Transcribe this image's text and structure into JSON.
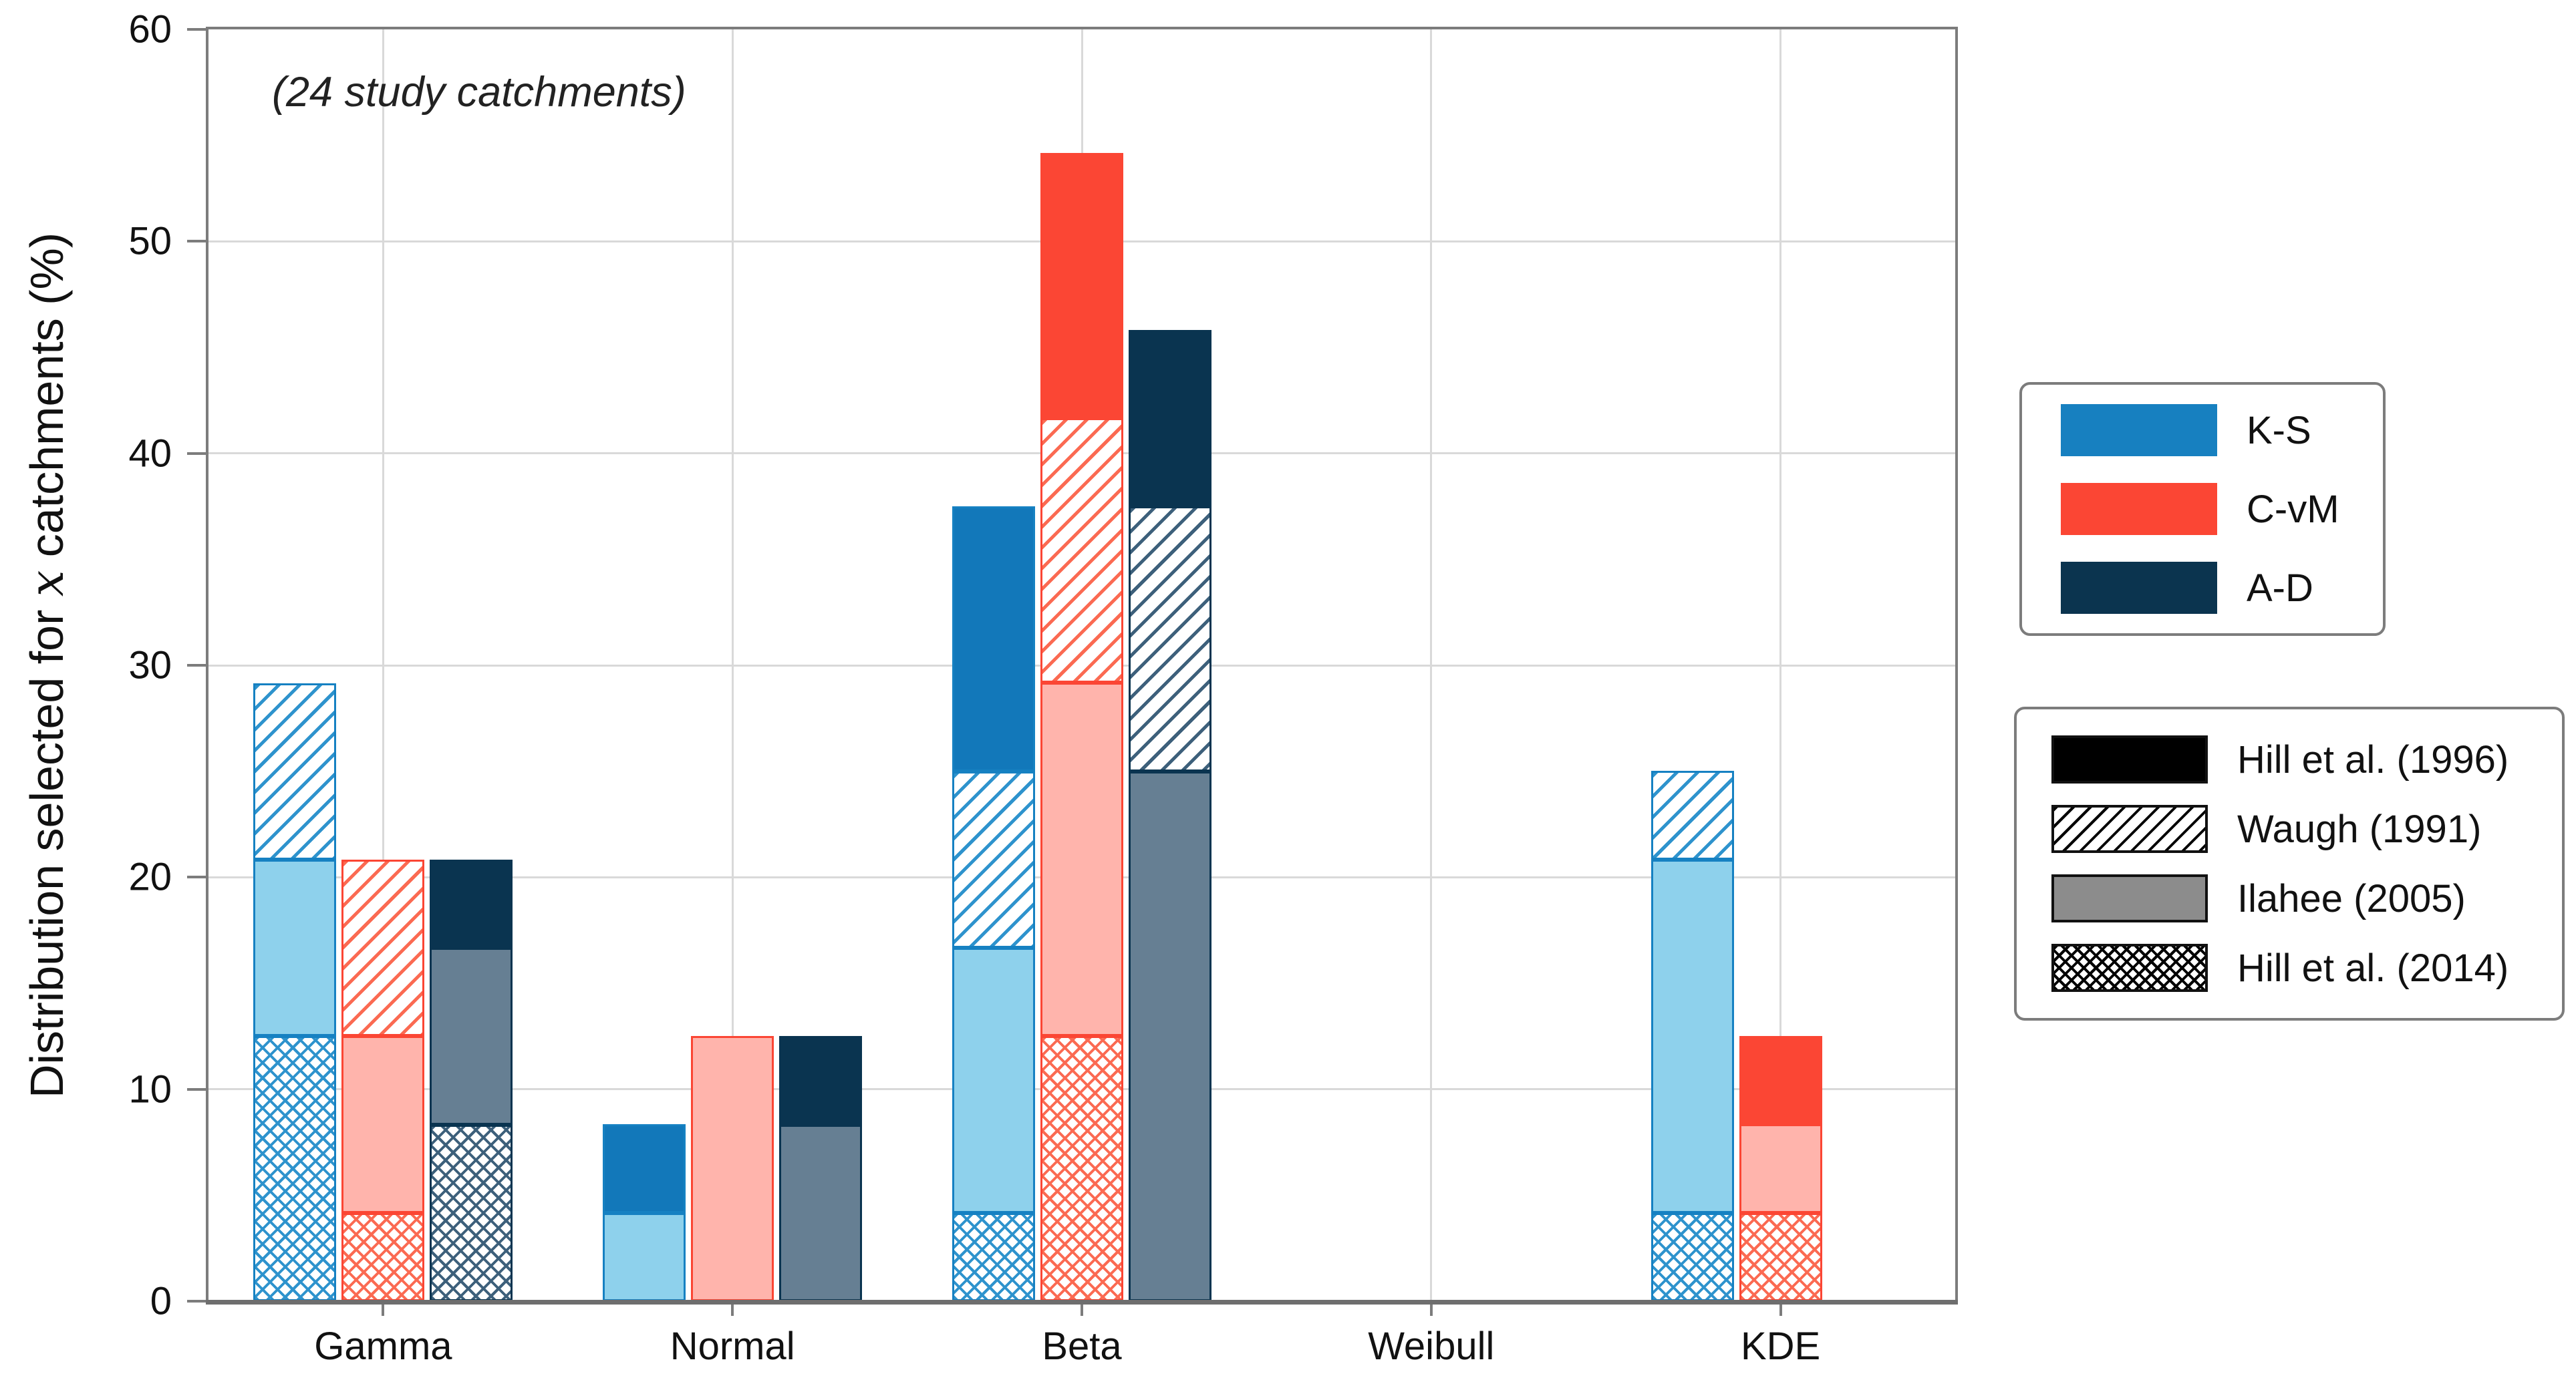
{
  "annotation": "(24 study catchments)",
  "ylabel": {
    "pre": "Distribution selected for ",
    "var": "x",
    "post": " catchments (%)"
  },
  "legend_tests": {
    "items": [
      {
        "label": "K-S",
        "color": "#1780c0"
      },
      {
        "label": "C-vM",
        "color": "#fb4634"
      },
      {
        "label": "A-D",
        "color": "#0b344f"
      }
    ]
  },
  "legend_studies": {
    "items": [
      {
        "label": "Hill et al. (1996)",
        "pattern": "solid",
        "color": "#000000"
      },
      {
        "label": "Waugh (1991)",
        "pattern": "diag",
        "color": "#000000"
      },
      {
        "label": "Ilahee (2005)",
        "pattern": "solid",
        "color": "#8c8c8c"
      },
      {
        "label": "Hill et al. (2014)",
        "pattern": "cross",
        "color": "#000000"
      }
    ]
  },
  "chart_data": {
    "type": "bar",
    "subtype": "grouped-stacked",
    "title": "",
    "annotation": "(24 study catchments)",
    "xlabel": "",
    "ylabel": "Distribution selected for x catchments (%)",
    "ylim": [
      0,
      60
    ],
    "yticks": [
      0,
      10,
      20,
      30,
      40,
      50,
      60
    ],
    "grid": true,
    "categories": [
      "Gamma",
      "Normal",
      "Beta",
      "Weibull",
      "KDE"
    ],
    "unit_pct_per_catchment": 4.17,
    "stack_order": [
      "Hill et al. (2014)",
      "Ilahee (2005)",
      "Waugh (1991)",
      "Hill et al. (1996)"
    ],
    "patterns": {
      "Hill et al. (2014)": "cross",
      "Ilahee (2005)": "light",
      "Waugh (1991)": "diag",
      "Hill et al. (1996)": "strong"
    },
    "series": [
      {
        "name": "K-S",
        "colors": {
          "strong": "#1278ba",
          "light": "#8ed1ec",
          "hatch": "#2e93cd",
          "line": "#1681c2"
        },
        "stacks": {
          "Hill et al. (2014)": [
            12.5,
            0,
            4.17,
            0,
            4.17
          ],
          "Ilahee (2005)": [
            8.33,
            4.17,
            12.5,
            0,
            16.67
          ],
          "Waugh (1991)": [
            8.33,
            0,
            8.33,
            0,
            4.17
          ],
          "Hill et al. (1996)": [
            0,
            4.17,
            12.5,
            0,
            0
          ]
        },
        "totals": [
          29.17,
          8.33,
          37.5,
          0,
          25
        ]
      },
      {
        "name": "C-vM",
        "colors": {
          "strong": "#fb4634",
          "light": "#ffb4ac",
          "hatch": "#fb6a52",
          "line": "#fb4634"
        },
        "stacks": {
          "Hill et al. (2014)": [
            4.17,
            0,
            12.5,
            0,
            4.17
          ],
          "Ilahee (2005)": [
            8.33,
            12.5,
            16.67,
            0,
            4.17
          ],
          "Waugh (1991)": [
            8.33,
            0,
            12.5,
            0,
            0
          ],
          "Hill et al. (1996)": [
            0,
            0,
            12.5,
            0,
            4.17
          ]
        },
        "totals": [
          20.83,
          12.5,
          54.17,
          0,
          12.5
        ]
      },
      {
        "name": "A-D",
        "colors": {
          "strong": "#0a3450",
          "light": "#667f93",
          "hatch": "#3d607b",
          "line": "#0a3450"
        },
        "stacks": {
          "Hill et al. (2014)": [
            8.33,
            0,
            0,
            0,
            0
          ],
          "Ilahee (2005)": [
            8.33,
            8.33,
            25,
            0,
            0
          ],
          "Waugh (1991)": [
            0,
            0,
            12.5,
            0,
            0
          ],
          "Hill et al. (1996)": [
            4.17,
            4.17,
            8.33,
            0,
            0
          ]
        },
        "totals": [
          20.83,
          12.5,
          45.83,
          0,
          0
        ]
      }
    ]
  }
}
